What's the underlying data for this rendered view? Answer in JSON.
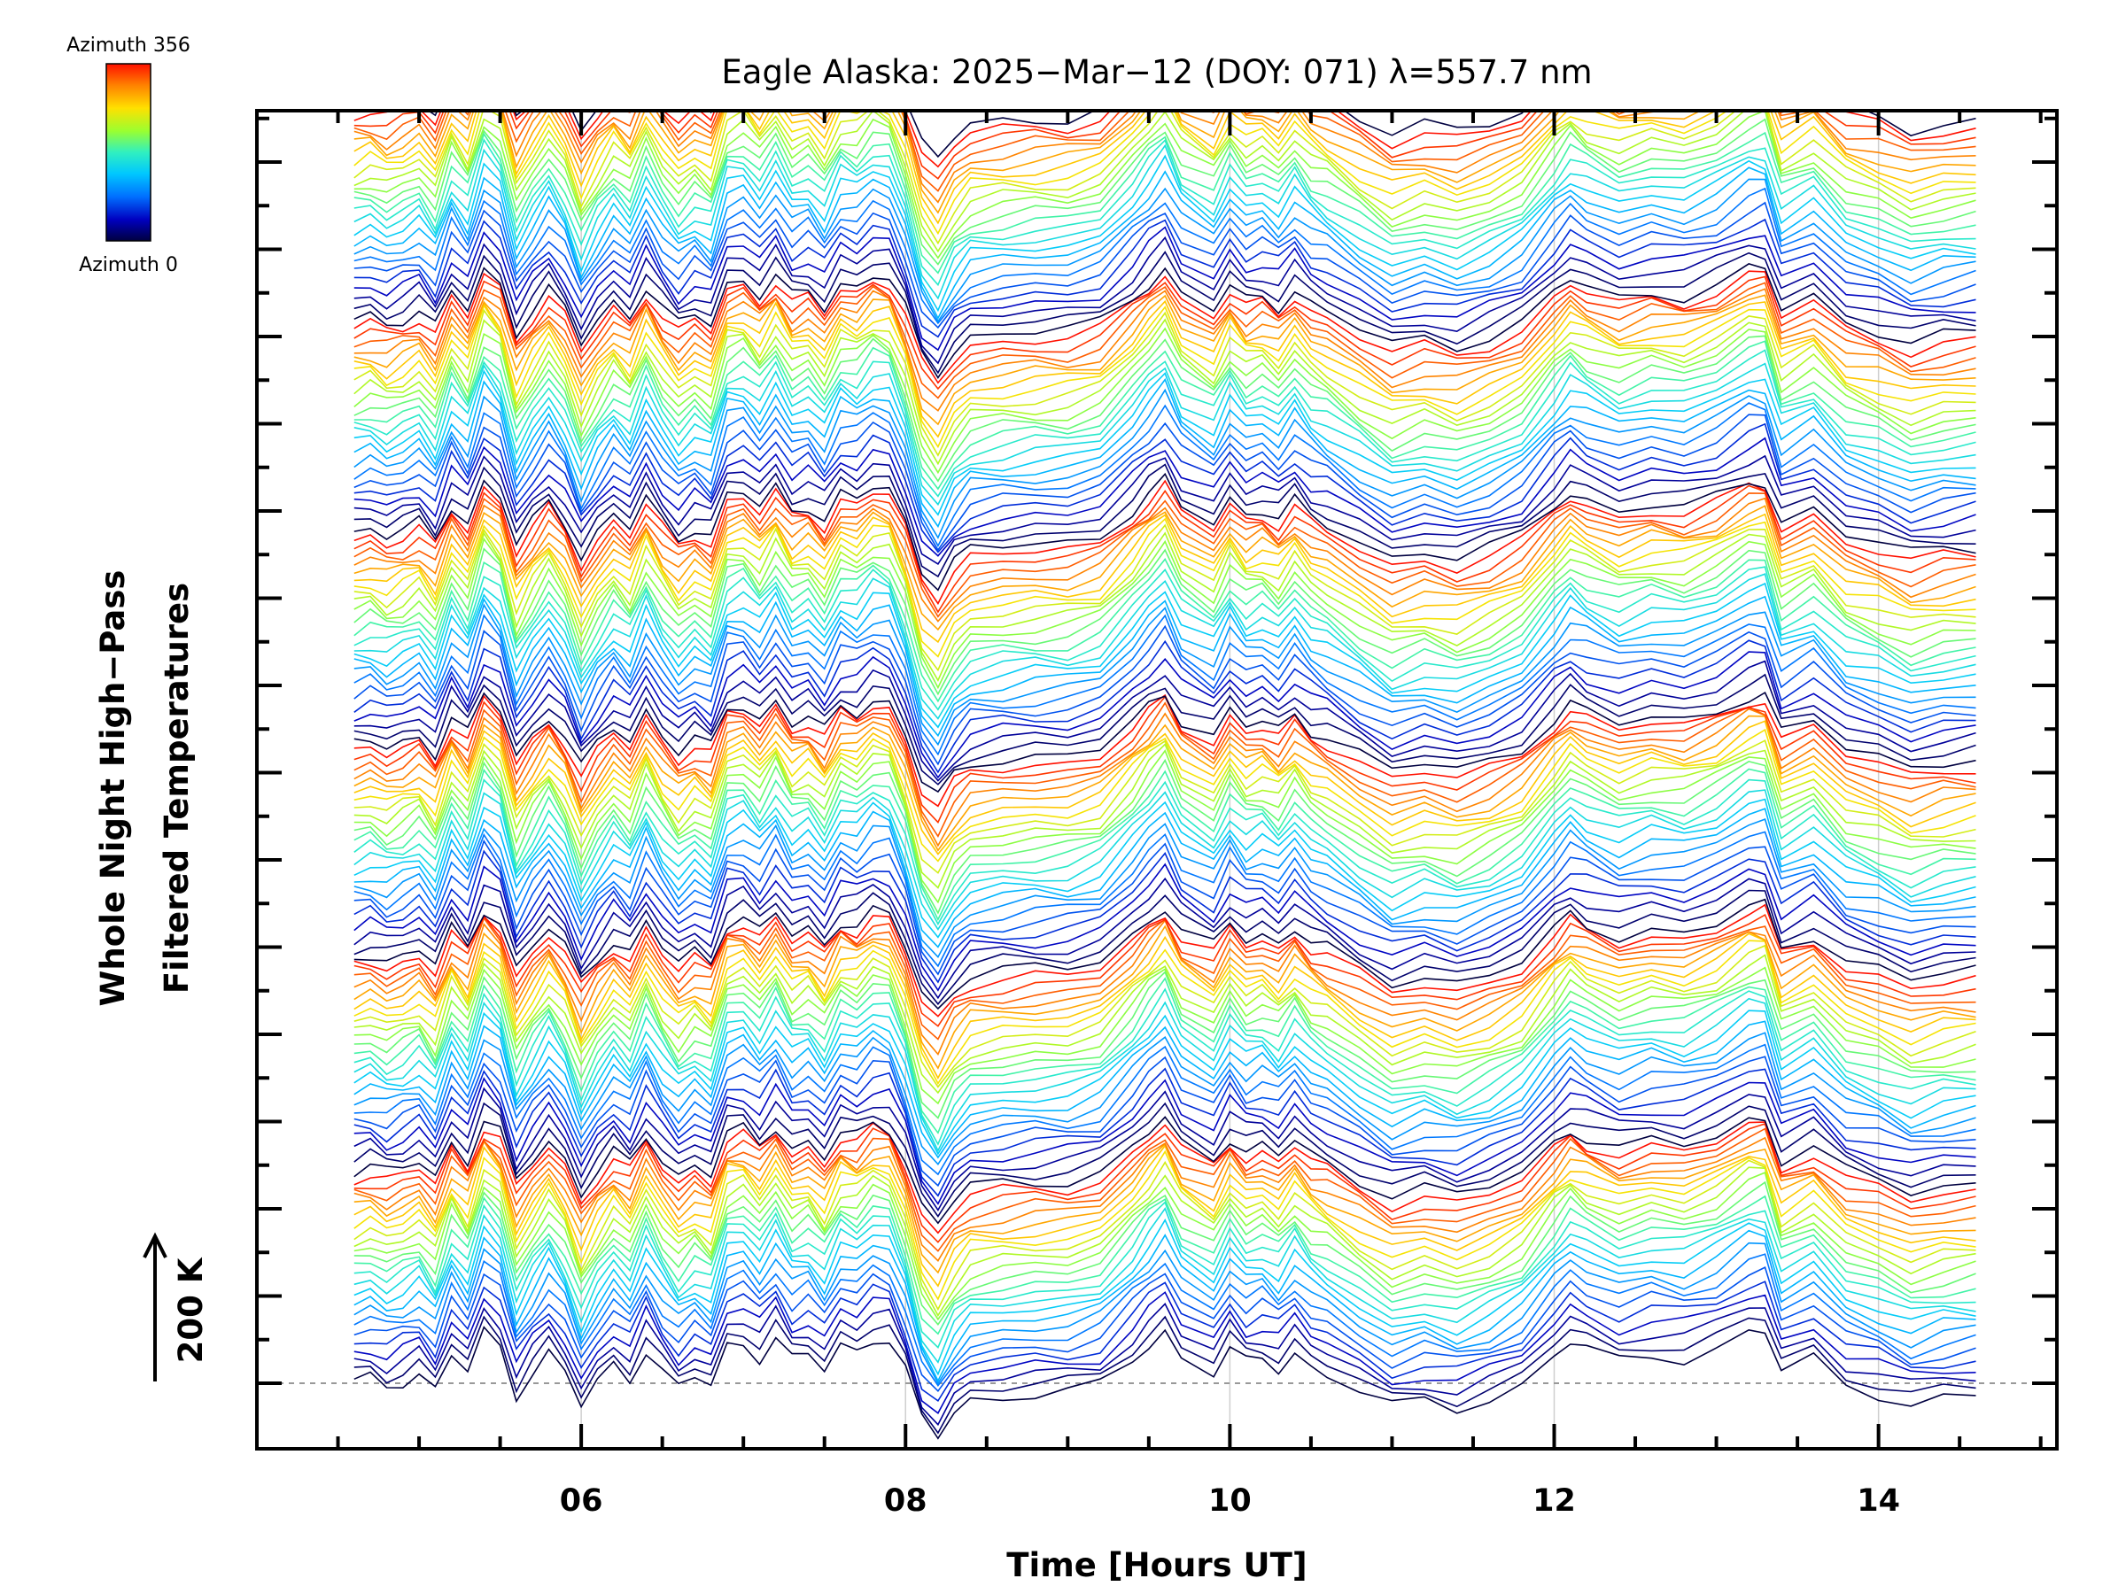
{
  "chart_data": {
    "type": "line",
    "title": "Eagle Alaska: 2025−Mar−12 (DOY: 071) λ=557.7 nm",
    "xlabel": "Time [Hours UT]",
    "ylabel_line1": "Whole Night High−Pass",
    "ylabel_line2": "Filtered Temperatures",
    "scale_label": "200 K",
    "xlim": [
      4.0,
      15.1
    ],
    "x_ticks": [
      6,
      8,
      10,
      12,
      14
    ],
    "x_tick_labels": [
      "06",
      "08",
      "10",
      "12",
      "14"
    ],
    "x_range_data": [
      4.6,
      14.6
    ],
    "num_y_major_ticks": 15,
    "y_axis_labels_shown": false,
    "num_traces": 145,
    "azimuth_cycle_length": 24,
    "colorbar": {
      "top_label": "Azimuth 356",
      "bottom_label": "Azimuth 0",
      "min": 0,
      "max": 356
    },
    "colormap": [
      "#000040",
      "#0000c0",
      "#0070ff",
      "#00c8ff",
      "#30f0c0",
      "#9aff30",
      "#ffe000",
      "#ff8000",
      "#ff1000"
    ],
    "grid": "vertical lines at x ticks",
    "legend": "top-left colorbar",
    "series_profile": {
      "x": [
        4.6,
        4.7,
        4.8,
        4.9,
        5.0,
        5.1,
        5.2,
        5.3,
        5.4,
        5.5,
        5.6,
        5.7,
        5.8,
        5.9,
        6.0,
        6.1,
        6.2,
        6.3,
        6.4,
        6.5,
        6.6,
        6.7,
        6.8,
        6.9,
        7.0,
        7.1,
        7.2,
        7.3,
        7.4,
        7.5,
        7.6,
        7.7,
        7.8,
        7.9,
        8.0,
        8.1,
        8.2,
        8.3,
        8.4,
        8.6,
        8.8,
        9.0,
        9.2,
        9.4,
        9.5,
        9.6,
        9.7,
        9.9,
        10.0,
        10.1,
        10.2,
        10.3,
        10.4,
        10.5,
        10.6,
        10.8,
        11.0,
        11.2,
        11.4,
        11.6,
        11.8,
        12.0,
        12.1,
        12.2,
        12.4,
        12.6,
        12.8,
        13.0,
        13.2,
        13.3,
        13.4,
        13.6,
        13.8,
        14.0,
        14.2,
        14.4,
        14.6
      ],
      "y": [
        40,
        46,
        34,
        43,
        55,
        27,
        88,
        58,
        125,
        102,
        20,
        58,
        90,
        58,
        0,
        40,
        70,
        48,
        98,
        58,
        30,
        50,
        34,
        102,
        108,
        84,
        116,
        78,
        88,
        62,
        104,
        96,
        118,
        112,
        58,
        -22,
        -52,
        -12,
        10,
        16,
        20,
        22,
        34,
        78,
        104,
        128,
        84,
        58,
        98,
        72,
        80,
        64,
        92,
        66,
        54,
        24,
        -4,
        8,
        -4,
        12,
        34,
        86,
        110,
        96,
        76,
        88,
        82,
        98,
        126,
        128,
        58,
        80,
        36,
        22,
        2,
        12,
        16
      ]
    },
    "series_offset_spacing_K": 12.5,
    "scale_bar_K": 200
  }
}
